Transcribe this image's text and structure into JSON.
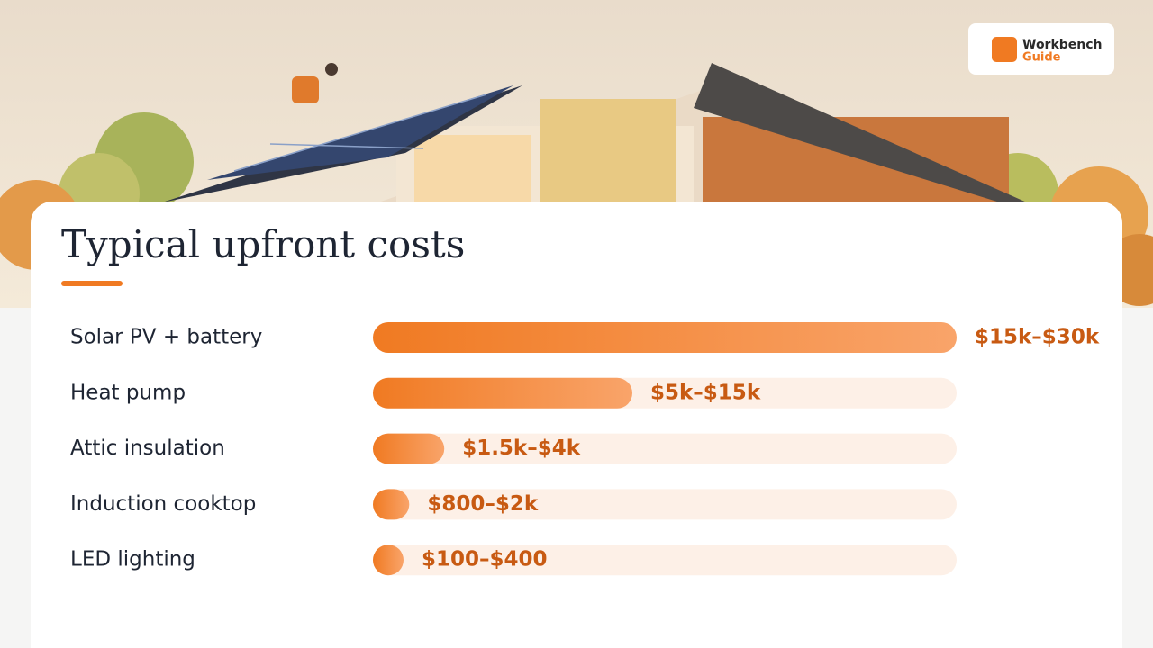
{
  "logo": {
    "line1": "Workbench",
    "line2": "Guide"
  },
  "chart_data": {
    "type": "range-bar",
    "title": "Typical upfront costs",
    "categories": [
      "Solar PV + battery",
      "Heat pump",
      "Attic insulation",
      "Induction cooktop",
      "LED lighting"
    ],
    "ranges": [
      [
        15000,
        30000
      ],
      [
        5000,
        15000
      ],
      [
        1500,
        4000
      ],
      [
        800,
        2000
      ],
      [
        100,
        400
      ]
    ],
    "value_labels": [
      "$15k–$30k",
      "$5k–$15k",
      "$1.5k–$4k",
      "$800–$2k",
      "$100–$400"
    ],
    "color": "#f07a22",
    "track_color": "#fdf0e7",
    "label_color": "#c85a12"
  }
}
